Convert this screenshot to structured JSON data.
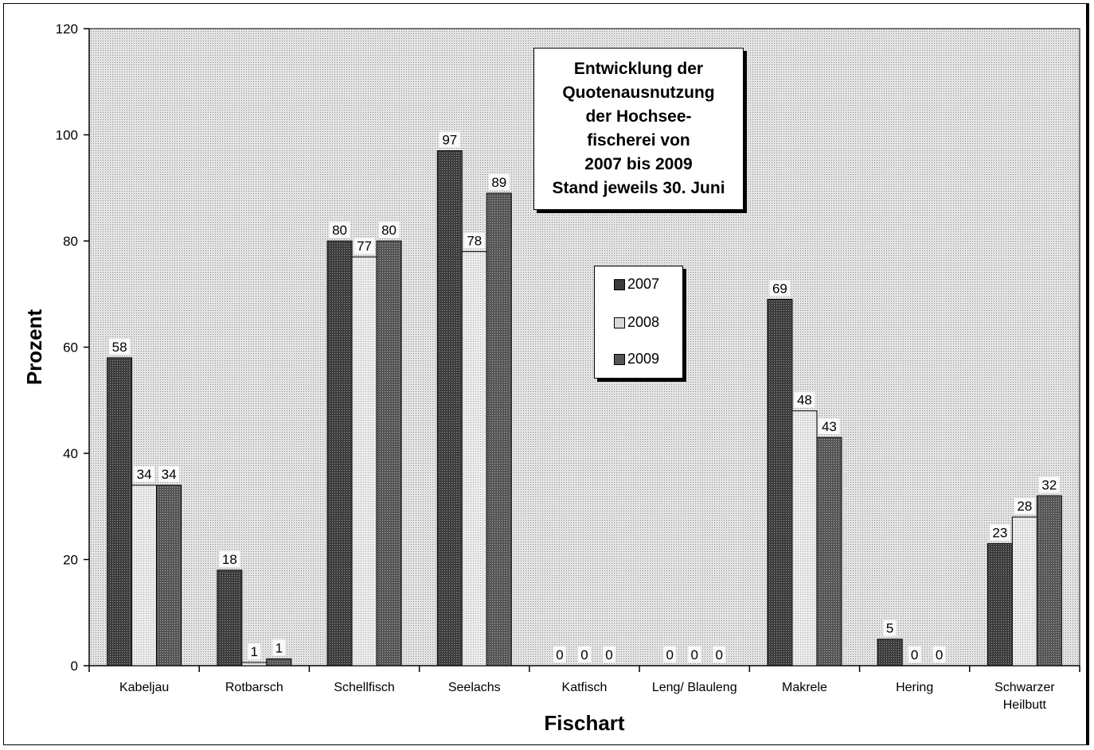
{
  "chart_data": {
    "type": "bar",
    "title": "Entwicklung der\nQuotenausnutzung\nder Hochsee-\nfischerei von\n2007 bis 2009\nStand jeweils 30. Juni",
    "xlabel": "Fischart",
    "ylabel": "Prozent",
    "ylim": [
      0,
      120
    ],
    "yticks": [
      0,
      20,
      40,
      60,
      80,
      100,
      120
    ],
    "grid": false,
    "legend_position": "center",
    "categories": [
      "Kabeljau",
      "Rotbarsch",
      "Schellfisch",
      "Seelachs",
      "Katfisch",
      "Leng/ Blauleng",
      "Makrele",
      "Hering",
      "Schwarzer Heilbutt"
    ],
    "category_lines": [
      [
        "Kabeljau"
      ],
      [
        "Rotbarsch"
      ],
      [
        "Schellfisch"
      ],
      [
        "Seelachs"
      ],
      [
        "Katfisch"
      ],
      [
        "Leng/ Blauleng"
      ],
      [
        "Makrele"
      ],
      [
        "Hering"
      ],
      [
        "Schwarzer",
        "Heilbutt"
      ]
    ],
    "series": [
      {
        "name": "2007",
        "color": "#5a5a5a",
        "values": [
          58,
          18,
          80,
          97,
          0,
          0,
          69,
          5,
          23
        ],
        "labels": [
          "58",
          "18",
          "80",
          "97",
          "0",
          "0",
          "69",
          "5",
          "23"
        ]
      },
      {
        "name": "2008",
        "color": "#dadada",
        "values": [
          34,
          0.6,
          77,
          78,
          0,
          0,
          48,
          0,
          28
        ],
        "labels": [
          "34",
          "1",
          "77",
          "78",
          "0",
          "0",
          "48",
          "0",
          "28"
        ]
      },
      {
        "name": "2009",
        "color": "#6e6e6e",
        "values": [
          34,
          1.3,
          80,
          89,
          0,
          0,
          43,
          0,
          32
        ],
        "labels": [
          "34",
          "1",
          "80",
          "89",
          "0",
          "0",
          "43",
          "0",
          "32"
        ]
      }
    ],
    "plot_background": "#c8c8c8"
  }
}
